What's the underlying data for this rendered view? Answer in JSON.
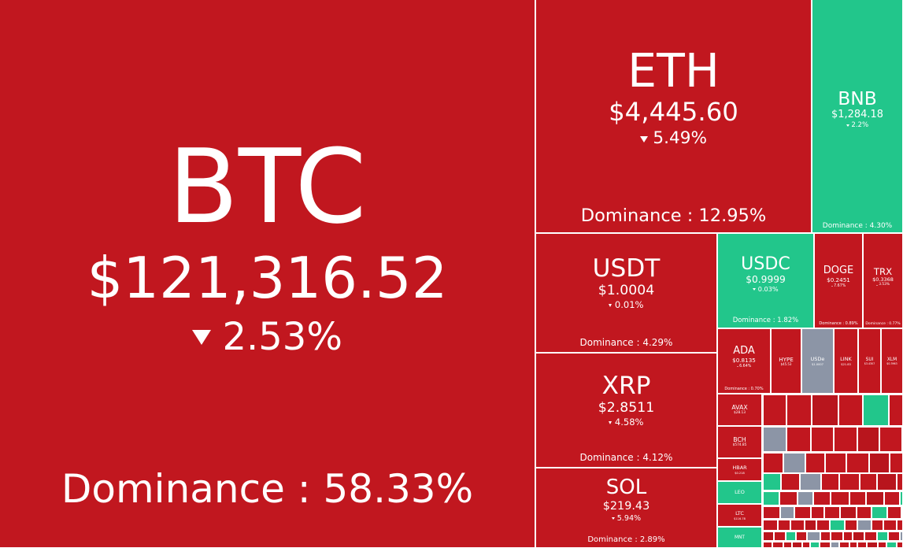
{
  "chart_data": {
    "type": "treemap",
    "tiles": [
      {
        "name": "BTC",
        "price": "$121,316.52",
        "change": "2.53%",
        "dominance": "Dominance : 58.33%",
        "color": "#c1171f"
      },
      {
        "name": "ETH",
        "price": "$4,445.60",
        "change": "5.49%",
        "dominance": "Dominance : 12.95%",
        "color": "#c1171f"
      },
      {
        "name": "BNB",
        "price": "$1,284.18",
        "change": "2.2%",
        "dominance": "Dominance : 4.30%",
        "color": "#22c68b"
      },
      {
        "name": "USDT",
        "price": "$1.0004",
        "change": "0.01%",
        "dominance": "Dominance : 4.29%",
        "color": "#c1171f"
      },
      {
        "name": "XRP",
        "price": "$2.8511",
        "change": "4.58%",
        "dominance": "Dominance : 4.12%",
        "color": "#c1171f"
      },
      {
        "name": "SOL",
        "price": "$219.43",
        "change": "5.94%",
        "dominance": "Dominance : 2.89%",
        "color": "#c1171f"
      },
      {
        "name": "USDC",
        "price": "$0.9999",
        "change": "0.03%",
        "dominance": "Dominance : 1.82%",
        "color": "#22c68b"
      },
      {
        "name": "DOGE",
        "price": "$0.2451",
        "change": "7.67%",
        "dominance": "Dominance : 0.89%",
        "color": "#c1171f"
      },
      {
        "name": "TRX",
        "price": "$0.3368",
        "change": "3.53%",
        "dominance": "Dominance : 0.77%",
        "color": "#c1171f"
      },
      {
        "name": "ADA",
        "price": "$0.8135",
        "change": "6.64%",
        "dominance": "Dominance : 0.70%",
        "color": "#c1171f"
      },
      {
        "name": "HYPE",
        "price": "$45.53",
        "color": "#c1171f"
      },
      {
        "name": "USDe",
        "price": "$1.0007",
        "color": "#8c95a6"
      },
      {
        "name": "LINK",
        "price": "$21.83",
        "color": "#c1171f"
      },
      {
        "name": "SUI",
        "price": "$3.4307",
        "color": "#c1171f"
      },
      {
        "name": "XLM",
        "price": "$0.3963",
        "color": "#c1171f"
      },
      {
        "name": "AVAX",
        "price": "$28.13",
        "color": "#c1171f"
      },
      {
        "name": "BCH",
        "price": "$574.85",
        "color": "#c1171f"
      },
      {
        "name": "HBAR",
        "price": "$0.218",
        "color": "#c1171f"
      },
      {
        "name": "LEO",
        "color": "#22c68b"
      },
      {
        "name": "LTC",
        "price": "$116.78",
        "color": "#c1171f"
      },
      {
        "name": "MNT",
        "color": "#22c68b"
      }
    ]
  }
}
